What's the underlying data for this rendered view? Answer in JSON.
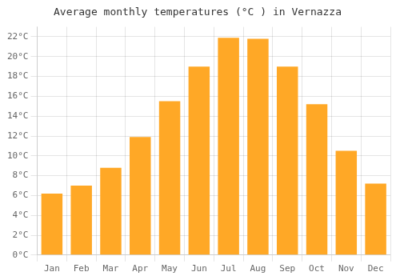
{
  "chart_data": {
    "type": "bar",
    "title": "Average monthly temperatures (°C ) in Vernazza",
    "categories": [
      "Jan",
      "Feb",
      "Mar",
      "Apr",
      "May",
      "Jun",
      "Jul",
      "Aug",
      "Sep",
      "Oct",
      "Nov",
      "Dec"
    ],
    "values": [
      6.2,
      7.0,
      8.8,
      11.9,
      15.5,
      19.0,
      21.9,
      21.8,
      19.0,
      15.2,
      10.5,
      7.2
    ],
    "color": "#FFA826",
    "ylim": [
      0,
      23
    ],
    "yticks": [
      {
        "value": 0,
        "label": "0°C"
      },
      {
        "value": 2,
        "label": "2°C"
      },
      {
        "value": 4,
        "label": "4°C"
      },
      {
        "value": 6,
        "label": "6°C"
      },
      {
        "value": 8,
        "label": "8°C"
      },
      {
        "value": 10,
        "label": "10°C"
      },
      {
        "value": 12,
        "label": "12°C"
      },
      {
        "value": 14,
        "label": "14°C"
      },
      {
        "value": 16,
        "label": "16°C"
      },
      {
        "value": 18,
        "label": "18°C"
      },
      {
        "value": 20,
        "label": "20°C"
      },
      {
        "value": 22,
        "label": "22°C"
      }
    ],
    "grid": true
  }
}
